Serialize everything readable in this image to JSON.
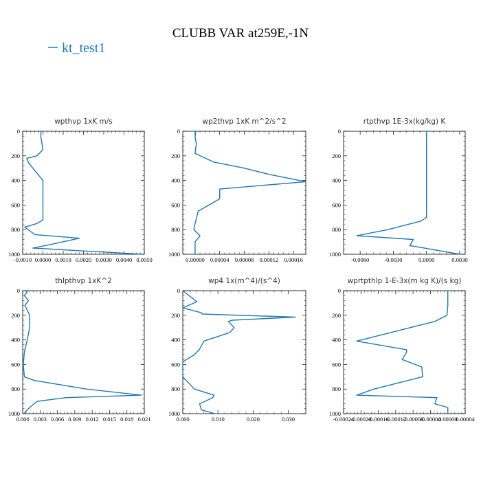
{
  "title": "CLUBB VAR at259E,-1N",
  "legend": {
    "label": "kt_test1",
    "color": "#1f77b4"
  },
  "chart_data": [
    {
      "type": "line",
      "title": "wpthvp   1xK m/s",
      "xlim": [
        -0.001,
        0.005
      ],
      "ylim": [
        0,
        1000
      ],
      "y_reversed": true,
      "x_ticks": [
        -0.001,
        0.0,
        0.001,
        0.002,
        0.003,
        0.004,
        0.005
      ],
      "x_tick_labels": [
        "-0.0010",
        "0.0000",
        "0.0010",
        "0.0020",
        "0.0030",
        "0.0040",
        "0.0050"
      ],
      "y_ticks": [
        0,
        200,
        400,
        600,
        800,
        1000
      ],
      "y_tick_labels": [
        "0",
        "200",
        "400",
        "600",
        "800",
        "1000"
      ],
      "series": [
        {
          "x": [
            -0.0001,
            -0.0001,
            0.0,
            -0.0003,
            -0.0008,
            -0.0007,
            -0.0004,
            0.0,
            0.0,
            0.0,
            0.0,
            -0.0003,
            -0.0009,
            -0.0004,
            0.0018,
            0.0004,
            -0.0005,
            0.0049
          ],
          "y": [
            0,
            50,
            150,
            200,
            220,
            260,
            320,
            400,
            500,
            600,
            720,
            750,
            780,
            840,
            870,
            920,
            950,
            1000
          ]
        }
      ]
    },
    {
      "type": "line",
      "title": "wp2thvp   1xK m^2/s^2",
      "xlim": [
        -2e-05,
        0.00018
      ],
      "ylim": [
        0,
        1000
      ],
      "y_reversed": true,
      "x_ticks": [
        0.0,
        4e-05,
        8e-05,
        0.00012,
        0.00016
      ],
      "x_tick_labels": [
        "0.00000",
        "0.00004",
        "0.00008",
        "0.00012",
        "0.00016"
      ],
      "y_ticks": [
        0,
        200,
        400,
        600,
        800,
        1000
      ],
      "y_tick_labels": [
        "0",
        "200",
        "400",
        "600",
        "800",
        "1000"
      ],
      "series": [
        {
          "x": [
            1e-06,
            0.0,
            2e-06,
            0.0,
            3e-05,
            8e-05,
            0.00012,
            0.00018,
            4e-05,
            4e-05,
            5e-06,
            0.0,
            -2e-06,
            8e-06,
            0.0,
            0.0
          ],
          "y": [
            0,
            50,
            100,
            180,
            250,
            300,
            350,
            410,
            470,
            550,
            650,
            750,
            800,
            850,
            900,
            1000
          ]
        }
      ]
    },
    {
      "type": "line",
      "title": "rtpthvp   1E-3x(kg/kg) K",
      "xlim": [
        -0.0075,
        0.0035
      ],
      "ylim": [
        0,
        1000
      ],
      "y_reversed": true,
      "x_ticks": [
        -0.006,
        -0.003,
        0.0,
        0.003
      ],
      "x_tick_labels": [
        "-0.0060",
        "-0.0030",
        "0.0000",
        "0.0030"
      ],
      "y_ticks": [
        0,
        200,
        400,
        600,
        800,
        1000
      ],
      "y_tick_labels": [
        "0",
        "200",
        "400",
        "600",
        "800",
        "1000"
      ],
      "series": [
        {
          "x": [
            0.0,
            0.0,
            0.0,
            0.0,
            -0.0005,
            -0.0035,
            -0.0063,
            -0.0012,
            -0.0015,
            -0.0008,
            0.003
          ],
          "y": [
            0,
            200,
            500,
            700,
            730,
            800,
            850,
            880,
            930,
            940,
            1000
          ]
        }
      ]
    },
    {
      "type": "line",
      "title": "thlpthvp   1xK^2",
      "xlim": [
        0.0,
        0.021
      ],
      "ylim": [
        0,
        1000
      ],
      "y_reversed": true,
      "x_ticks": [
        0.0,
        0.003,
        0.006,
        0.009,
        0.012,
        0.015,
        0.018,
        0.021
      ],
      "x_tick_labels": [
        "0.000",
        "0.003",
        "0.006",
        "0.009",
        "0.012",
        "0.015",
        "0.018",
        "0.021"
      ],
      "y_ticks": [
        0,
        200,
        400,
        600,
        800,
        1000
      ],
      "y_tick_labels": [
        "0",
        "200",
        "400",
        "600",
        "800",
        "1000"
      ],
      "series": [
        {
          "x": [
            0.0009,
            0.0003,
            0.001,
            0.0004,
            0.0012,
            0.0012,
            0.0008,
            0.0003,
            0.0001,
            0.0003,
            0.002,
            0.011,
            0.0205,
            0.0075,
            0.0025,
            0.0012,
            0.0002
          ],
          "y": [
            0,
            40,
            80,
            120,
            200,
            300,
            400,
            500,
            600,
            700,
            730,
            800,
            850,
            870,
            900,
            950,
            1000
          ]
        }
      ]
    },
    {
      "type": "line",
      "title": "wp4   1x(m^4)/(s^4)",
      "xlim": [
        0.0,
        0.035
      ],
      "ylim": [
        0,
        1000
      ],
      "y_reversed": true,
      "x_ticks": [
        0.0,
        0.01,
        0.02,
        0.03
      ],
      "x_tick_labels": [
        "0.000",
        "0.010",
        "0.020",
        "0.030"
      ],
      "y_ticks": [
        0,
        200,
        400,
        600,
        800,
        1000
      ],
      "y_tick_labels": [
        "0",
        "200",
        "400",
        "600",
        "800",
        "1000"
      ],
      "series": [
        {
          "x": [
            0.0,
            0.004,
            0.0,
            0.0053,
            0.0055,
            0.032,
            0.014,
            0.013,
            0.0146,
            0.0134,
            0.006,
            0.0047,
            0.0033,
            0.0016,
            0.0,
            0.0,
            0.0,
            0.0033,
            0.0089,
            0.0085,
            0.0063,
            0.0048,
            0.0053,
            0.0092
          ],
          "y": [
            0,
            90,
            140,
            180,
            190,
            215,
            240,
            250,
            300,
            340,
            410,
            480,
            520,
            550,
            580,
            650,
            700,
            800,
            850,
            870,
            900,
            920,
            970,
            1000
          ]
        }
      ]
    },
    {
      "type": "line",
      "title": "wprtpthlp   1-E-3x(m kg K)/(s kg)",
      "xlim": [
        -0.00024,
        4e-05
      ],
      "ylim": [
        0,
        1000
      ],
      "y_reversed": true,
      "x_ticks": [
        -0.00024,
        -0.0002,
        -0.00016,
        -0.00012,
        -8e-05,
        -4e-05,
        0.0,
        4e-05
      ],
      "x_tick_labels": [
        "-0.00024",
        "-0.00020",
        "-0.00016",
        "-0.00012",
        "-0.00008",
        "-0.00004",
        "0.00000",
        "0.00004"
      ],
      "y_ticks": [
        0,
        200,
        400,
        600,
        800,
        1000
      ],
      "y_tick_labels": [
        "0",
        "200",
        "400",
        "600",
        "800",
        "1000"
      ],
      "series": [
        {
          "x": [
            0.0,
            0.0,
            -2e-06,
            -3e-05,
            -0.00021,
            -9.5e-05,
            -9.5e-05,
            -0.000105,
            -6e-05,
            -5.8e-05,
            -0.00017,
            -0.00021,
            -2.5e-05,
            -3e-05,
            0.0,
            0.0
          ],
          "y": [
            0,
            120,
            200,
            250,
            410,
            480,
            500,
            560,
            620,
            700,
            800,
            850,
            870,
            920,
            950,
            1000
          ]
        }
      ]
    }
  ]
}
